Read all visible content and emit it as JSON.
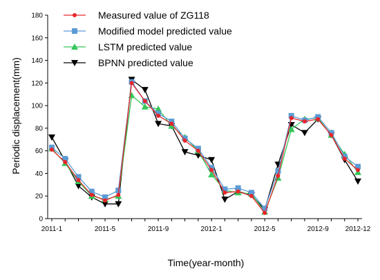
{
  "chart_data": {
    "type": "line",
    "title": "",
    "xlabel": "Time(year-month)",
    "ylabel": "Periodic displacement(mm)",
    "ylim": [
      0,
      180
    ],
    "yticks": [
      0,
      20,
      40,
      60,
      80,
      100,
      120,
      140,
      160,
      180
    ],
    "x": [
      "2011-1",
      "2011-2",
      "2011-3",
      "2011-4",
      "2011-5",
      "2011-6",
      "2011-7",
      "2011-8",
      "2011-9",
      "2011-10",
      "2011-11",
      "2011-12",
      "2012-1",
      "2012-2",
      "2012-3",
      "2012-4",
      "2012-5",
      "2012-6",
      "2012-7",
      "2012-8",
      "2012-9",
      "2012-10",
      "2012-11",
      "2012-12"
    ],
    "xtick_labels": [
      "2011-1",
      "2011-5",
      "2011-9",
      "2012-1",
      "2012-5",
      "2012-9",
      "2012-12"
    ],
    "grid": false,
    "legend_position": "top-left",
    "series": [
      {
        "name": "Measured value of ZG118",
        "color": "#e8262b",
        "marker": "circle",
        "values": [
          61,
          50,
          34,
          21,
          16,
          21,
          120,
          104,
          91,
          84,
          69,
          60,
          43,
          23,
          24,
          20,
          5,
          38,
          89,
          86,
          88,
          74,
          53,
          43
        ]
      },
      {
        "name": "Modified model predicted value",
        "color": "#5b9bd5",
        "marker": "square",
        "values": [
          63,
          53,
          37,
          24,
          19,
          25,
          121,
          104,
          93,
          86,
          71,
          62,
          45,
          26,
          27,
          23,
          9,
          42,
          91,
          87,
          90,
          76,
          55,
          46
        ]
      },
      {
        "name": "LSTM predicted value",
        "color": "#34c759",
        "marker": "triangle-up",
        "values": [
          62,
          49,
          33,
          20,
          17,
          20,
          109,
          99,
          97,
          82,
          72,
          60,
          39,
          25,
          23,
          22,
          6,
          36,
          79,
          88,
          89,
          74,
          57,
          41
        ]
      },
      {
        "name": "BPNN predicted value",
        "color": "#000000",
        "marker": "triangle-down",
        "values": [
          72,
          51,
          29,
          19,
          13,
          13,
          123,
          114,
          84,
          82,
          59,
          56,
          52,
          17,
          24,
          21,
          8,
          48,
          83,
          76,
          88,
          74,
          52,
          33
        ]
      }
    ]
  }
}
